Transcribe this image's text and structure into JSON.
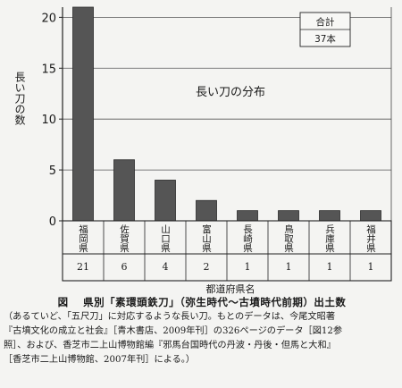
{
  "chart_data": {
    "type": "bar",
    "title": "長い刀の分布",
    "ylabel": "長い刀の数",
    "xlabel": "都道府県名",
    "categories": [
      "福岡県",
      "佐賀県",
      "山口県",
      "富山県",
      "長崎県",
      "鳥取県",
      "兵庫県",
      "福井県"
    ],
    "values": [
      21,
      6,
      4,
      2,
      1,
      1,
      1,
      1
    ],
    "value_labels": [
      "21",
      "6",
      "4",
      "2",
      "1",
      "1",
      "1",
      "1"
    ],
    "ylim": [
      0,
      21
    ],
    "yticks": [
      0,
      5,
      10,
      15,
      20
    ],
    "grid": true,
    "bar_color": "#555555",
    "total": {
      "label": "合計",
      "value": "37本",
      "position": "top-right"
    }
  },
  "caption": {
    "label": "図",
    "title": "県別「素環頭鉄刀」（弥生時代～古墳時代前期）出土数",
    "lines": [
      "（あるていど、「五尺刀」に対応するような長い刀。もとのデータは、今尾文昭著",
      "『古墳文化の成立と社会』［青木書店、2009年刊］の326ページのデータ［図12参",
      "照］、および、香芝市二上山博物館編『邪馬台国時代の丹波・丹後・但馬と大和』",
      "［香芝市二上山博物館、2007年刊］による。）"
    ]
  }
}
